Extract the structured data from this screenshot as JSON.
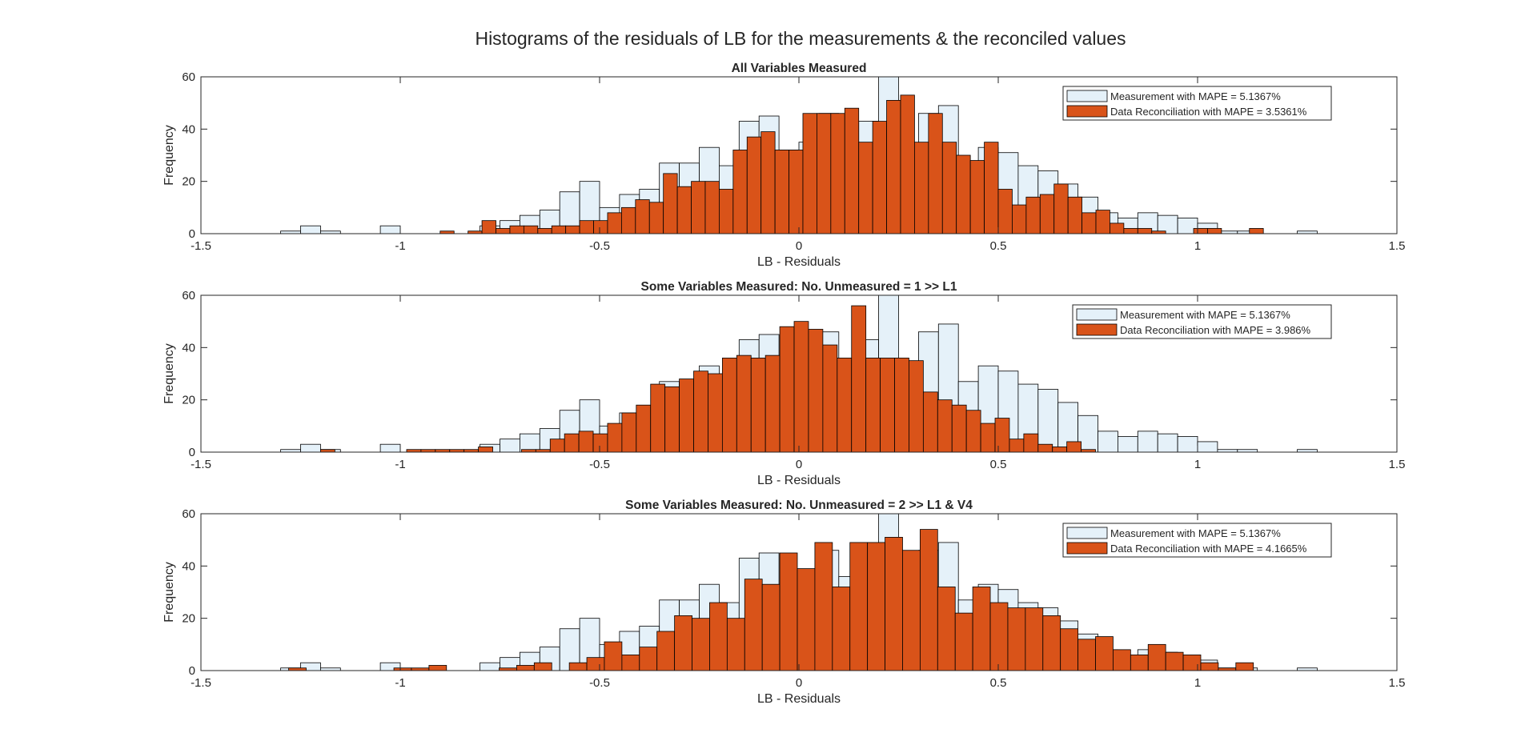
{
  "figure": {
    "title": "Histograms of the residuals of LB for the measurements & the reconciled values"
  },
  "colors": {
    "measurement_fill": "#e5f1f9",
    "reconciliation_fill": "#d95319",
    "edge": "#000000",
    "axis": "#262626"
  },
  "chart_data": [
    {
      "type": "bar",
      "title": "All Variables Measured",
      "xlabel": "LB - Residuals",
      "ylabel": "Frequency",
      "xlim": [
        -1.5,
        1.5
      ],
      "ylim": [
        0,
        60
      ],
      "xticks": [
        "-1.5",
        "-1",
        "-0.5",
        "0",
        "0.5",
        "1",
        "1.5"
      ],
      "yticks": [
        "0",
        "20",
        "40",
        "60"
      ],
      "legend_position": "top-right",
      "series": [
        {
          "name": "Measurement with MAPE = 5.1367%",
          "bin_start": -1.3,
          "bin_width": 0.05,
          "values": [
            1,
            3,
            1,
            0,
            0,
            3,
            0,
            0,
            0,
            0,
            3,
            5,
            7,
            9,
            16,
            20,
            10,
            15,
            17,
            27,
            27,
            33,
            26,
            43,
            45,
            32,
            35,
            46,
            36,
            43,
            64,
            34,
            46,
            49,
            27,
            33,
            31,
            26,
            24,
            19,
            14,
            8,
            6,
            8,
            7,
            6,
            4,
            1,
            1,
            0,
            0,
            1,
            0,
            0,
            0,
            0,
            1
          ]
        },
        {
          "name": "Data Reconciliation with MAPE = 3.5361%",
          "bin_start": -0.9,
          "bin_width": 0.035,
          "values": [
            1,
            0,
            1,
            5,
            2,
            3,
            3,
            2,
            3,
            3,
            5,
            5,
            8,
            10,
            13,
            12,
            23,
            18,
            20,
            20,
            17,
            32,
            37,
            39,
            32,
            32,
            46,
            46,
            46,
            48,
            35,
            43,
            51,
            53,
            35,
            46,
            35,
            30,
            28,
            35,
            17,
            11,
            14,
            15,
            19,
            14,
            8,
            9,
            4,
            2,
            2,
            1,
            0,
            0,
            2,
            2,
            0,
            0,
            2
          ]
        }
      ]
    },
    {
      "type": "bar",
      "title": "Some Variables Measured: No. Unmeasured = 1 >> L1",
      "xlabel": "LB - Residuals",
      "ylabel": "Frequency",
      "xlim": [
        -1.5,
        1.5
      ],
      "ylim": [
        0,
        60
      ],
      "xticks": [
        "-1.5",
        "-1",
        "-0.5",
        "0",
        "0.5",
        "1",
        "1.5"
      ],
      "yticks": [
        "0",
        "20",
        "40",
        "60"
      ],
      "legend_position": "top-right",
      "series": [
        {
          "name": "Measurement with MAPE = 5.1367%",
          "bin_start": -1.3,
          "bin_width": 0.05,
          "values": [
            1,
            3,
            1,
            0,
            0,
            3,
            0,
            0,
            0,
            0,
            3,
            5,
            7,
            9,
            16,
            20,
            10,
            15,
            17,
            27,
            27,
            33,
            26,
            43,
            45,
            32,
            35,
            46,
            36,
            43,
            64,
            34,
            46,
            49,
            27,
            33,
            31,
            26,
            24,
            19,
            14,
            8,
            6,
            8,
            7,
            6,
            4,
            1,
            1,
            0,
            0,
            1,
            0,
            0,
            0,
            0,
            1
          ]
        },
        {
          "name": "Data Reconciliation with MAPE = 3.986%",
          "bin_start": -1.2,
          "bin_width": 0.036,
          "values": [
            1,
            0,
            0,
            0,
            0,
            0,
            1,
            1,
            1,
            1,
            1,
            2,
            0,
            0,
            1,
            1,
            5,
            7,
            8,
            7,
            11,
            15,
            18,
            26,
            25,
            28,
            31,
            30,
            36,
            37,
            36,
            37,
            48,
            50,
            47,
            41,
            36,
            56,
            36,
            36,
            36,
            35,
            23,
            20,
            18,
            16,
            11,
            13,
            5,
            7,
            3,
            2,
            4,
            1
          ]
        }
      ]
    },
    {
      "type": "bar",
      "title": "Some Variables Measured: No. Unmeasured = 2 >> L1 & V4",
      "xlabel": "LB - Residuals",
      "ylabel": "Frequency",
      "xlim": [
        -1.5,
        1.5
      ],
      "ylim": [
        0,
        60
      ],
      "xticks": [
        "-1.5",
        "-1",
        "-0.5",
        "0",
        "0.5",
        "1",
        "1.5"
      ],
      "yticks": [
        "0",
        "20",
        "40",
        "60"
      ],
      "legend_position": "top-right",
      "series": [
        {
          "name": "Measurement with MAPE = 5.1367%",
          "bin_start": -1.3,
          "bin_width": 0.05,
          "values": [
            1,
            3,
            1,
            0,
            0,
            3,
            0,
            0,
            0,
            0,
            3,
            5,
            7,
            9,
            16,
            20,
            10,
            15,
            17,
            27,
            27,
            33,
            26,
            43,
            45,
            32,
            35,
            46,
            36,
            43,
            64,
            34,
            46,
            49,
            27,
            33,
            31,
            26,
            24,
            19,
            14,
            8,
            6,
            8,
            7,
            6,
            4,
            1,
            1,
            0,
            0,
            1,
            0,
            0,
            0,
            0,
            1
          ]
        },
        {
          "name": "Data Reconciliation with MAPE = 4.1665%",
          "bin_start": -1.28,
          "bin_width": 0.044,
          "values": [
            1,
            0,
            0,
            0,
            0,
            0,
            1,
            1,
            2,
            0,
            0,
            0,
            1,
            2,
            3,
            0,
            3,
            5,
            11,
            6,
            9,
            15,
            21,
            20,
            26,
            20,
            35,
            33,
            45,
            39,
            49,
            32,
            49,
            49,
            51,
            46,
            54,
            32,
            22,
            32,
            26,
            24,
            24,
            21,
            16,
            12,
            13,
            8,
            6,
            10,
            7,
            6,
            3,
            1,
            3
          ]
        }
      ]
    }
  ]
}
